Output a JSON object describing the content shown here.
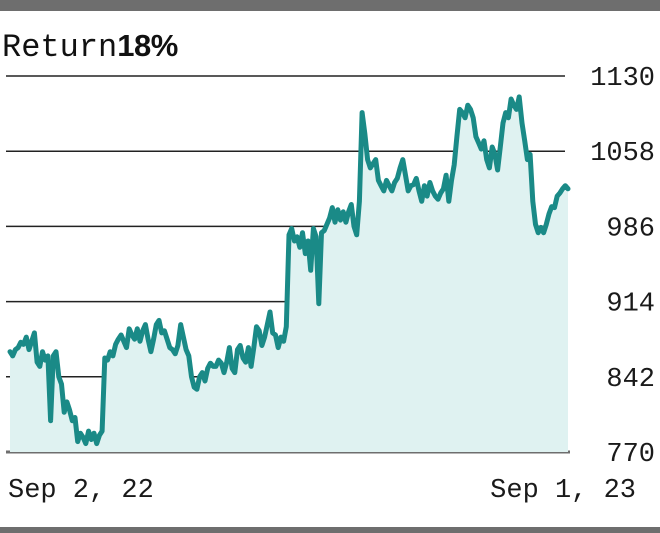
{
  "title": {
    "label": "Return",
    "value": "18%"
  },
  "colors": {
    "line": "#1a8a87",
    "area": "#dff2f1",
    "grid": "#222222",
    "frame": "#6e6e6e"
  },
  "chart_data": {
    "type": "area",
    "title": "Return18%",
    "xlabel": "",
    "ylabel": "",
    "ylim": [
      770,
      1130
    ],
    "yticks": [
      1130,
      1058,
      986,
      914,
      842,
      770
    ],
    "ytick_labels": [
      "1130",
      "1058",
      "986",
      "914",
      "842",
      "770"
    ],
    "y_axis_position": "right",
    "grid": "horizontal",
    "x_tick_labels": [
      "Sep 2, 22",
      "Sep 1, 23"
    ],
    "x_range_labels": [
      "Sep 2, 22",
      "Sep 1, 23"
    ],
    "series": [
      {
        "values": [
          866,
          862,
          868,
          870,
          875,
          873,
          880,
          868,
          876,
          884,
          856,
          852,
          866,
          858,
          862,
          800,
          862,
          866,
          842,
          835,
          808,
          818,
          810,
          800,
          803,
          780,
          788,
          784,
          778,
          790,
          782,
          788,
          778,
          786,
          790,
          860,
          858,
          866,
          862,
          873,
          878,
          882,
          876,
          870,
          888,
          882,
          878,
          888,
          876,
          886,
          892,
          878,
          866,
          878,
          892,
          896,
          884,
          886,
          878,
          870,
          868,
          864,
          872,
          892,
          880,
          868,
          862,
          842,
          832,
          830,
          842,
          846,
          838,
          850,
          855,
          852,
          852,
          858,
          855,
          846,
          856,
          870,
          850,
          846,
          868,
          872,
          860,
          856,
          870,
          852,
          870,
          890,
          886,
          872,
          880,
          892,
          904,
          884,
          882,
          870,
          880,
          876,
          890,
          978,
          984,
          972,
          976,
          966,
          980,
          960,
          972,
          944,
          984,
          976,
          912,
          980,
          982,
          988,
          994,
          1004,
          990,
          1002,
          992,
          1000,
          990,
          1000,
          1007,
          986,
          978,
          1010,
          1095,
          1075,
          1050,
          1042,
          1046,
          1050,
          1030,
          1025,
          1020,
          1030,
          1025,
          1020,
          1028,
          1032,
          1042,
          1050,
          1035,
          1020,
          1025,
          1026,
          1032,
          1020,
          1010,
          1025,
          1015,
          1028,
          1020,
          1015,
          1012,
          1018,
          1022,
          1035,
          1010,
          1030,
          1045,
          1072,
          1098,
          1095,
          1090,
          1102,
          1098,
          1090,
          1072,
          1066,
          1060,
          1068,
          1050,
          1042,
          1062,
          1055,
          1040,
          1062,
          1085,
          1095,
          1090,
          1108,
          1102,
          1098,
          1110,
          1085,
          1068,
          1050,
          1055,
          1010,
          988,
          980,
          985,
          980,
          988,
          998,
          1005,
          1004,
          1015,
          1018,
          1022,
          1025,
          1022
        ]
      }
    ]
  }
}
